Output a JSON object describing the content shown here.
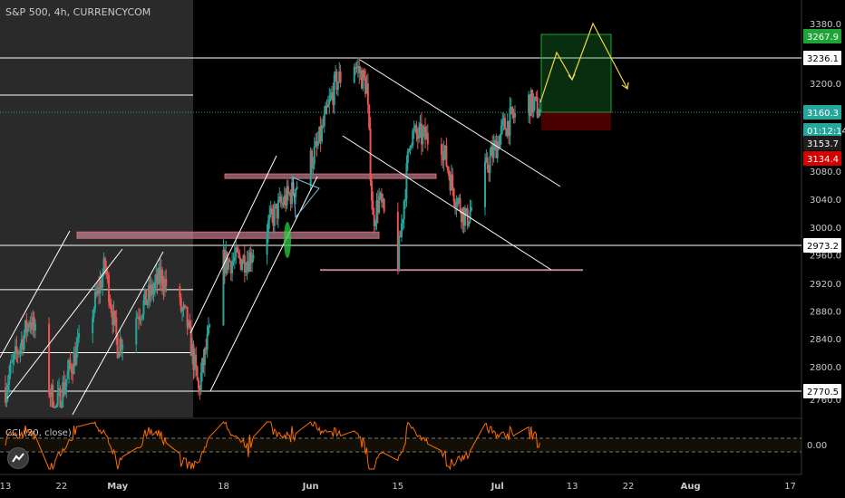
{
  "header": {
    "title": "S&P 500, 4h, CURRENCYCOM"
  },
  "indicator": {
    "title": "CCI (20, close)",
    "zero_label": "0.00"
  },
  "colors": {
    "background": "#000000",
    "up_candle": "#26a69a",
    "down_candle": "#ef5350",
    "cci_line": "#ff6d00",
    "annotation_white": "#ffffff",
    "zone_pink": "#e8a3c0",
    "target_green": "#1fa537",
    "stop_red": "#d50000",
    "projection": "#f5d742",
    "current_price": "#26a69a"
  },
  "chart_data": {
    "type": "candlestick",
    "title": "S&P 500, 4h, CURRENCYCOM",
    "y_range": [
      2750,
      3395
    ],
    "x_range_days": "2020-04-13 to 2020-08-20",
    "price_ticks": [
      "3380.0",
      "3200.0",
      "3080.0",
      "3040.0",
      "3000.0",
      "2960.0",
      "2920.0",
      "2880.0",
      "2840.0",
      "2800.0",
      "2760.0"
    ],
    "date_ticks": [
      "13",
      "22",
      "May",
      "18",
      "Jun",
      "15",
      "Jul",
      "13",
      "22",
      "Aug",
      "17"
    ],
    "price_labels": [
      {
        "text": "3267.9",
        "kind": "target"
      },
      {
        "text": "3236.1",
        "kind": "level"
      },
      {
        "text": "3160.3",
        "kind": "current"
      },
      {
        "text": "01:12:14",
        "kind": "countdown"
      },
      {
        "text": "3153.7",
        "kind": "dark"
      },
      {
        "text": "3134.4",
        "kind": "stop"
      },
      {
        "text": "2973.2",
        "kind": "level"
      },
      {
        "text": "2770.5",
        "kind": "level"
      }
    ],
    "horizontal_levels": [
      3236.1,
      3183.0,
      2973.2,
      2911.0,
      2820.0,
      2770.5
    ],
    "ohlc_anchors": [
      {
        "date": "2020-04-13",
        "close": 2775
      },
      {
        "date": "2020-04-17",
        "close": 2870
      },
      {
        "date": "2020-04-21",
        "close": 2745
      },
      {
        "date": "2020-04-27",
        "close": 2880
      },
      {
        "date": "2020-04-29",
        "close": 2945
      },
      {
        "date": "2020-05-01",
        "close": 2830
      },
      {
        "date": "2020-05-08",
        "close": 2930
      },
      {
        "date": "2020-05-12",
        "close": 2870
      },
      {
        "date": "2020-05-14",
        "close": 2770
      },
      {
        "date": "2020-05-18",
        "close": 2950
      },
      {
        "date": "2020-05-22",
        "close": 2955
      },
      {
        "date": "2020-05-27",
        "close": 3030
      },
      {
        "date": "2020-05-29",
        "close": 3050
      },
      {
        "date": "2020-06-02",
        "close": 3110
      },
      {
        "date": "2020-06-05",
        "close": 3200
      },
      {
        "date": "2020-06-08",
        "close": 3230
      },
      {
        "date": "2020-06-10",
        "close": 3195
      },
      {
        "date": "2020-06-11",
        "close": 3010
      },
      {
        "date": "2020-06-12",
        "close": 3040
      },
      {
        "date": "2020-06-15",
        "close": 2950
      },
      {
        "date": "2020-06-17",
        "close": 3130
      },
      {
        "date": "2020-06-22",
        "close": 3120
      },
      {
        "date": "2020-06-24",
        "close": 3050
      },
      {
        "date": "2020-06-26",
        "close": 3010
      },
      {
        "date": "2020-06-30",
        "close": 3100
      },
      {
        "date": "2020-07-02",
        "close": 3140
      },
      {
        "date": "2020-07-06",
        "close": 3175
      },
      {
        "date": "2020-07-08",
        "close": 3160
      }
    ],
    "cci_range": [
      -200,
      200
    ],
    "grid": false,
    "legend": "none"
  }
}
